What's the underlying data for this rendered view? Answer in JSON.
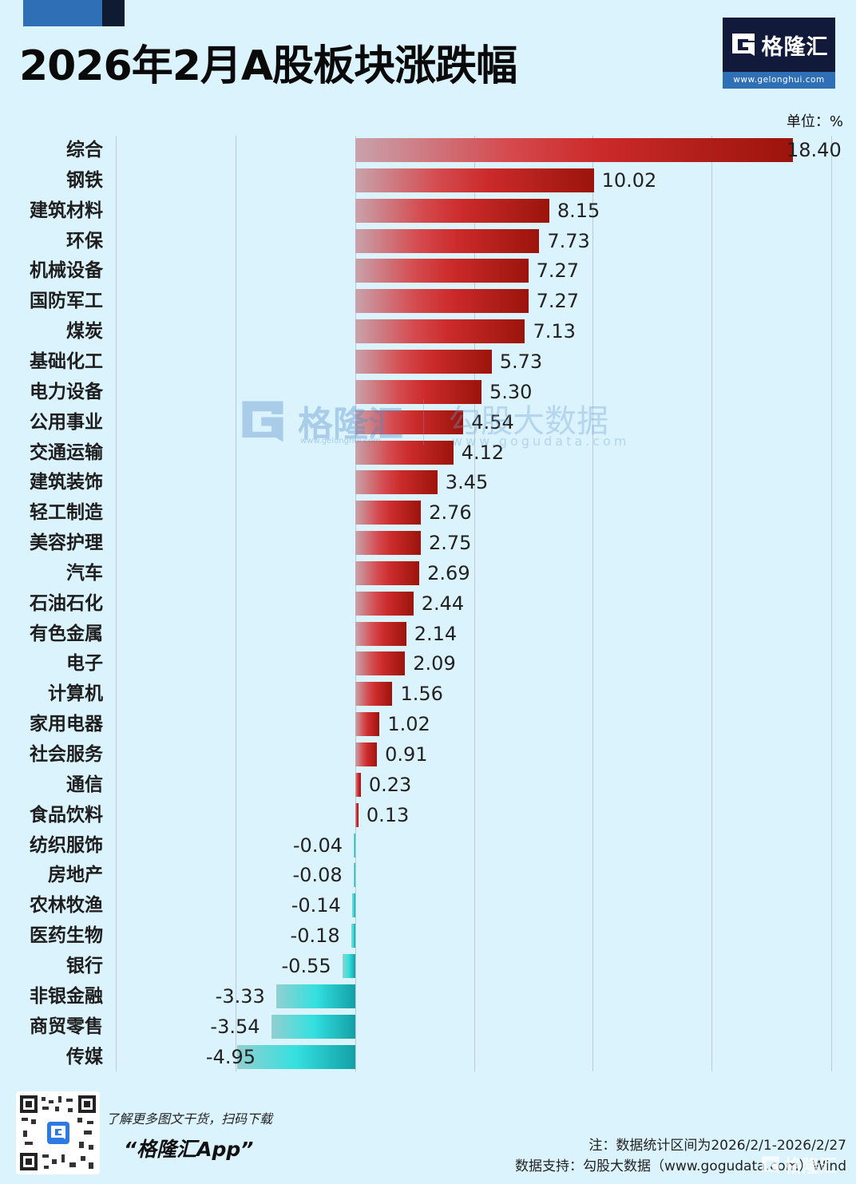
{
  "header": {
    "title": "2026年2月A股板块涨跌幅",
    "logo_name": "格隆汇",
    "logo_url": "www.gelonghui.com",
    "unit_label": "单位：%"
  },
  "watermark": {
    "brand1": "格隆汇",
    "brand1_url": "www.gelonghui.com",
    "brand2": "勾股大数据",
    "brand2_url": "www.gogudata.com"
  },
  "footer": {
    "promo_line1": "了解更多图文干货，扫码下载",
    "promo_line2": "“格隆汇App”",
    "note": "注：数据统计区间为2026/2/1-2026/2/27",
    "source": "数据支持：勾股大数据（www.gogudata.com）Wind",
    "corner_watermark": "格隆汇"
  },
  "colors": {
    "background": "#dbf3fd",
    "positive_bar_dark": "#9b140b",
    "positive_bar_mid": "#cc2b2b",
    "negative_bar_mid": "#34e0e0",
    "negative_bar_dark": "#13a0a6",
    "logo_dark": "#111a3a",
    "logo_blue": "#2f6fb5"
  },
  "chart_data": {
    "type": "bar",
    "orientation": "horizontal",
    "title": "2026年2月A股板块涨跌幅",
    "unit": "%",
    "xlabel": "",
    "ylabel": "",
    "xlim": [
      -10,
      20
    ],
    "grid": true,
    "gridline_values": [
      -10,
      -5,
      0,
      5,
      10,
      15,
      20
    ],
    "categories": [
      "综合",
      "钢铁",
      "建筑材料",
      "环保",
      "机械设备",
      "国防军工",
      "煤炭",
      "基础化工",
      "电力设备",
      "公用事业",
      "交通运输",
      "建筑装饰",
      "轻工制造",
      "美容护理",
      "汽车",
      "石油石化",
      "有色金属",
      "电子",
      "计算机",
      "家用电器",
      "社会服务",
      "通信",
      "食品饮料",
      "纺织服饰",
      "房地产",
      "农林牧渔",
      "医药生物",
      "银行",
      "非银金融",
      "商贸零售",
      "传媒"
    ],
    "values": [
      18.4,
      10.02,
      8.15,
      7.73,
      7.27,
      7.27,
      7.13,
      5.73,
      5.3,
      4.54,
      4.12,
      3.45,
      2.76,
      2.75,
      2.69,
      2.44,
      2.14,
      2.09,
      1.56,
      1.02,
      0.91,
      0.23,
      0.13,
      -0.04,
      -0.08,
      -0.14,
      -0.18,
      -0.55,
      -3.33,
      -3.54,
      -4.95
    ],
    "labels": [
      "18.40",
      "10.02",
      "8.15",
      "7.73",
      "7.27",
      "7.27",
      "7.13",
      "5.73",
      "5.30",
      "4.54",
      "4.12",
      "3.45",
      "2.76",
      "2.75",
      "2.69",
      "2.44",
      "2.14",
      "2.09",
      "1.56",
      "1.02",
      "0.91",
      "0.23",
      "0.13",
      "-0.04",
      "-0.08",
      "-0.14",
      "-0.18",
      "-0.55",
      "-3.33",
      "-3.54",
      "-4.95"
    ]
  }
}
